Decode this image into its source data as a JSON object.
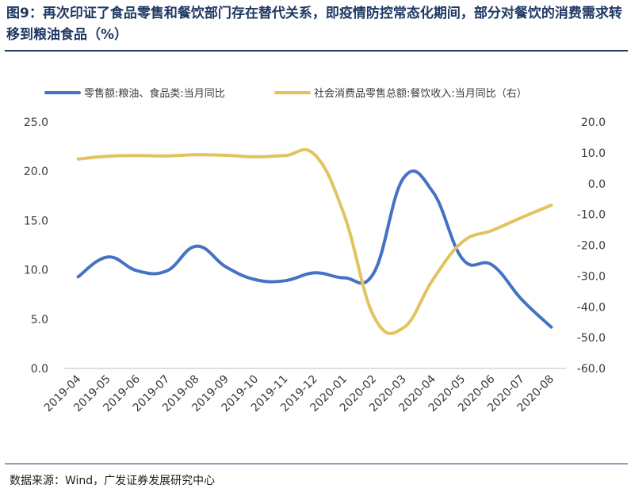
{
  "header": {
    "title": "图9：再次印证了食品零售和餐饮部门存在替代关系，即疫情防控常态化期间，部分对餐饮的消费需求转移到粮油食品（%）"
  },
  "footer": {
    "source": "数据来源：Wind，广发证券发展研究中心"
  },
  "chart_data": {
    "type": "line",
    "title": "",
    "categories": [
      "2019-04",
      "2019-05",
      "2019-06",
      "2019-07",
      "2019-08",
      "2019-09",
      "2019-10",
      "2019-11",
      "2019-12",
      "2020-01",
      "2020-02",
      "2020-03",
      "2020-04",
      "2020-05",
      "2020-06",
      "2020-07",
      "2020-08"
    ],
    "series": [
      {
        "name": "零售额:粮油、食品类:当月同比",
        "axis": "left",
        "color": "#4472c4",
        "values": [
          9.3,
          11.3,
          9.9,
          9.9,
          12.4,
          10.3,
          9.0,
          8.9,
          9.7,
          9.2,
          9.7,
          19.3,
          17.9,
          11.1,
          10.5,
          7.0,
          4.2
        ]
      },
      {
        "name": "社会消费品零售总额:餐饮收入:当月同比（右）",
        "axis": "right",
        "color": "#e2c35f",
        "values": [
          8.0,
          8.9,
          9.1,
          9.0,
          9.4,
          9.2,
          8.7,
          9.1,
          9.4,
          -10.2,
          -43.1,
          -46.8,
          -31.1,
          -18.9,
          -15.2,
          -11.0,
          -7.0
        ]
      }
    ],
    "yleft": {
      "ylim": [
        0,
        25
      ],
      "ticks": [
        "0.0",
        "5.0",
        "10.0",
        "15.0",
        "20.0",
        "25.0"
      ]
    },
    "yright": {
      "ylim": [
        -60,
        20
      ],
      "ticks": [
        "-60.0",
        "-50.0",
        "-40.0",
        "-30.0",
        "-20.0",
        "-10.0",
        "0.0",
        "10.0",
        "20.0"
      ]
    },
    "legend": "top",
    "grid": false
  }
}
